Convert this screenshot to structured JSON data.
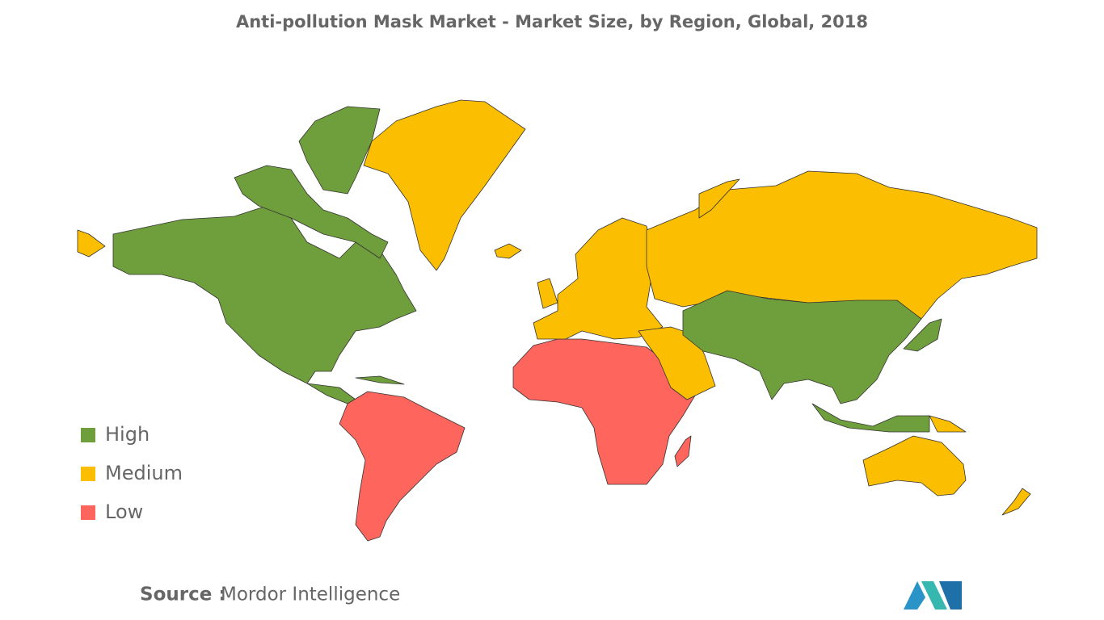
{
  "title": "Anti-pollution Mask Market - Market Size, by Region, Global, 2018",
  "legend": [
    {
      "name": "High",
      "color": "#6f9e3c"
    },
    {
      "name": "Medium",
      "color": "#fbbe00"
    },
    {
      "name": "Low",
      "color": "#fe665d"
    }
  ],
  "source": {
    "label": "Source :",
    "text": "Mordor Intelligence"
  }
}
